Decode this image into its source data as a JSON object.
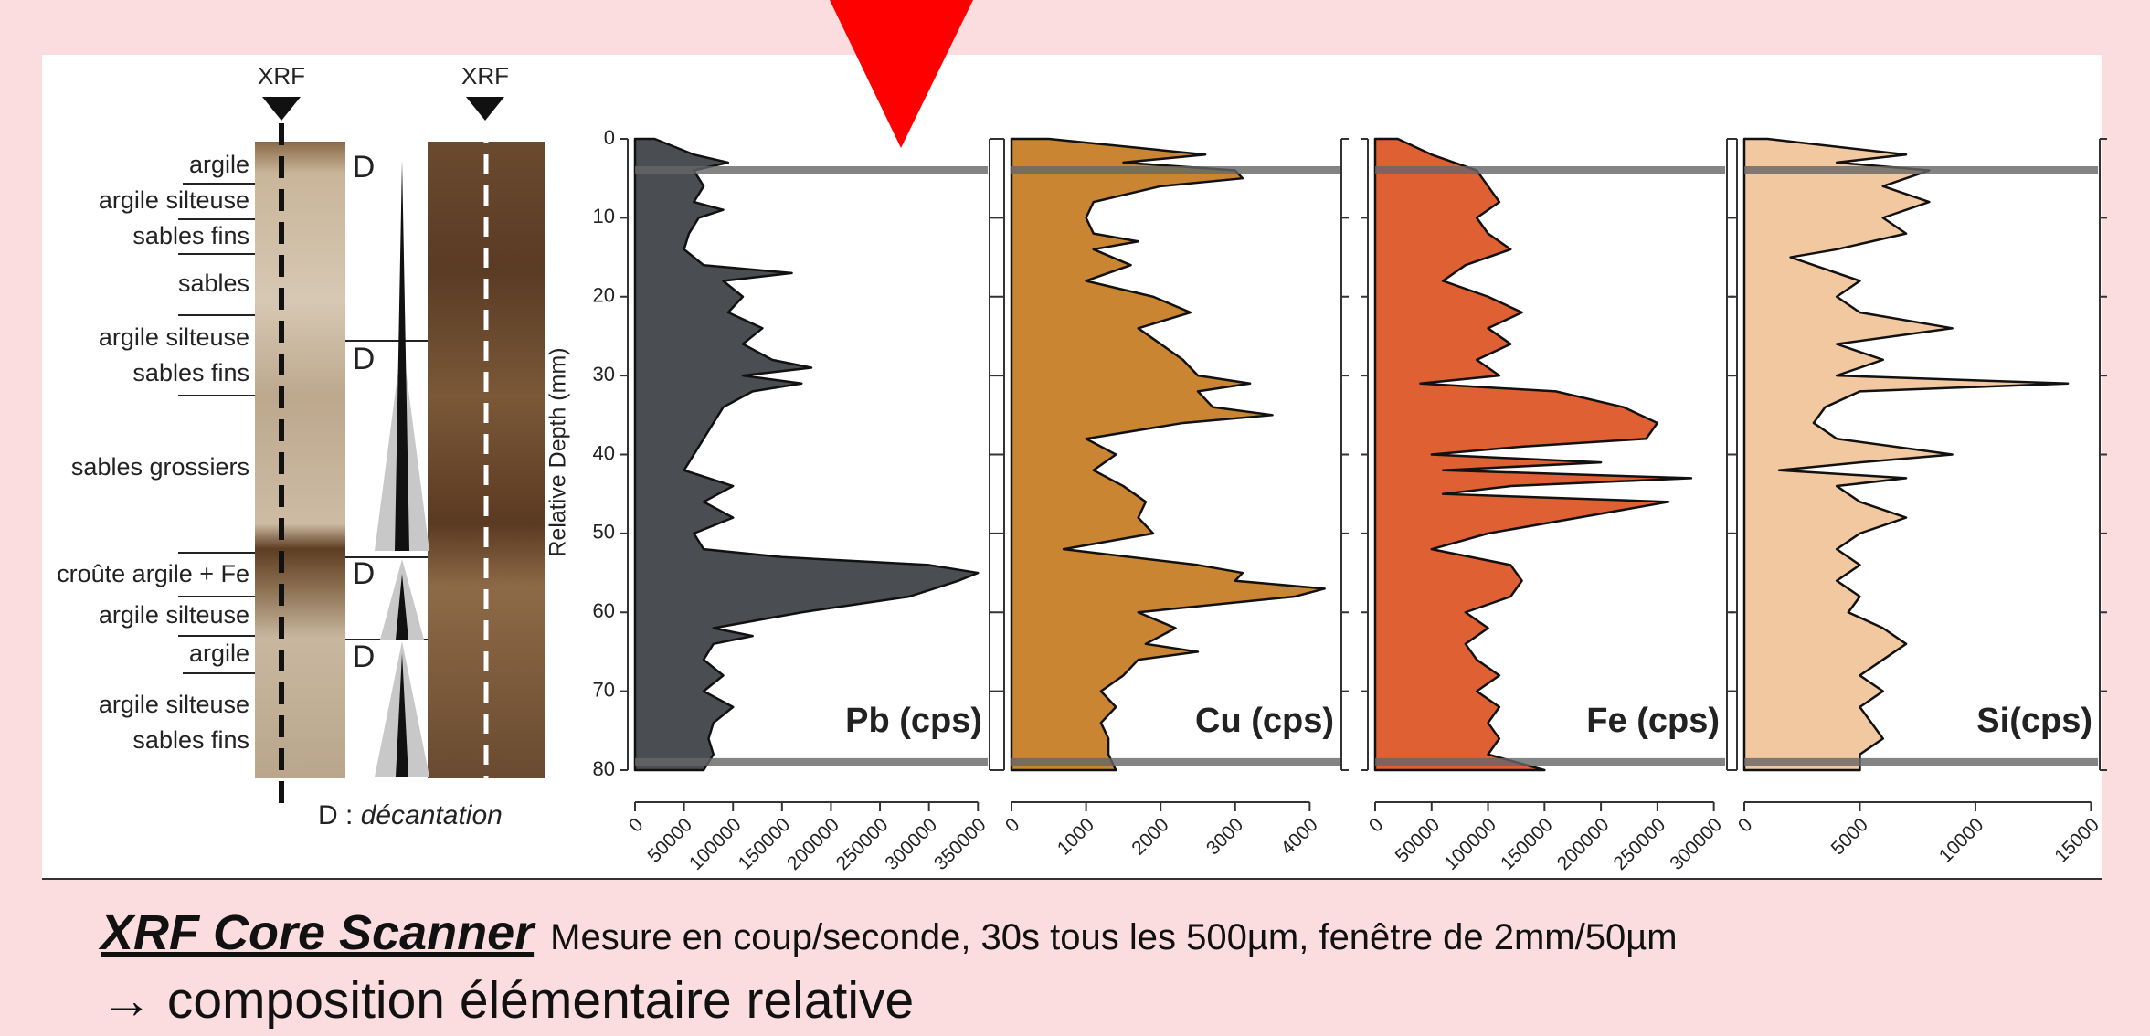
{
  "core_log": {
    "xrf_labels": [
      "XRF",
      "XRF"
    ],
    "layers": [
      "argile",
      "argile silteuse",
      "sables fins",
      "sables",
      "argile silteuse",
      "sables fins",
      "sables grossiers",
      "croûte argile + Fe",
      "argile silteuse",
      "argile",
      "argile silteuse",
      "sables fins"
    ],
    "d_marks": [
      "D",
      "D",
      "D",
      "D"
    ],
    "note": {
      "key": "D :",
      "text": "décantation"
    }
  },
  "chart_data": [
    {
      "type": "area",
      "title": "Pb (cps)",
      "color": "#4a4d52",
      "title_color": "#6b6b6b",
      "ylabel": "Relative Depth (mm)",
      "depth": [
        0,
        2,
        3,
        4,
        6,
        8,
        9,
        10,
        12,
        14,
        16,
        17,
        18,
        20,
        22,
        24,
        26,
        28,
        29,
        30,
        31,
        32,
        34,
        36,
        38,
        40,
        42,
        44,
        46,
        48,
        50,
        52,
        53,
        54,
        55,
        56,
        58,
        60,
        62,
        63,
        64,
        66,
        68,
        70,
        72,
        74,
        76,
        78,
        80
      ],
      "values": [
        20000,
        60000,
        95000,
        60000,
        70000,
        60000,
        90000,
        65000,
        55000,
        50000,
        70000,
        160000,
        90000,
        110000,
        95000,
        130000,
        110000,
        140000,
        180000,
        110000,
        170000,
        120000,
        90000,
        80000,
        70000,
        60000,
        50000,
        100000,
        70000,
        100000,
        60000,
        70000,
        150000,
        300000,
        350000,
        330000,
        280000,
        170000,
        80000,
        120000,
        80000,
        70000,
        90000,
        70000,
        100000,
        80000,
        75000,
        80000,
        70000
      ],
      "xlim": [
        0,
        360000
      ],
      "xticks": [
        0,
        50000,
        100000,
        150000,
        200000,
        250000,
        300000,
        350000
      ],
      "ylim": [
        0,
        80
      ],
      "yticks": [
        0,
        10,
        20,
        30,
        40,
        50,
        60,
        70,
        80
      ],
      "y_inverted": true,
      "hlines": [
        4,
        79
      ]
    },
    {
      "type": "area",
      "title": "Cu (cps)",
      "color": "#c98531",
      "title_color": "#c07f2a",
      "depth": [
        0,
        2,
        3,
        4,
        5,
        6,
        8,
        10,
        12,
        13,
        14,
        16,
        18,
        20,
        22,
        24,
        26,
        28,
        30,
        31,
        32,
        34,
        35,
        36,
        38,
        40,
        42,
        44,
        46,
        48,
        50,
        52,
        54,
        55,
        56,
        57,
        58,
        60,
        62,
        64,
        65,
        66,
        68,
        70,
        72,
        74,
        76,
        78,
        80
      ],
      "values": [
        500,
        2600,
        1500,
        3000,
        3100,
        2000,
        1100,
        1000,
        1100,
        1700,
        1100,
        1600,
        1000,
        1900,
        2400,
        1700,
        2000,
        2300,
        2500,
        3200,
        2500,
        2700,
        3500,
        2300,
        1000,
        1400,
        1100,
        1500,
        1800,
        1700,
        1900,
        700,
        2500,
        3100,
        3000,
        4200,
        3800,
        1700,
        2200,
        1800,
        2500,
        1700,
        1500,
        1200,
        1400,
        1200,
        1300,
        1300,
        1400
      ],
      "xlim": [
        0,
        4400
      ],
      "xticks": [
        0,
        1000,
        2000,
        3000,
        4000
      ],
      "ylim": [
        0,
        80
      ],
      "yticks": [
        0,
        10,
        20,
        30,
        40,
        50,
        60,
        70,
        80
      ],
      "y_inverted": true,
      "hlines": [
        4,
        79
      ]
    },
    {
      "type": "area",
      "title": "Fe (cps)",
      "color": "#df6033",
      "title_color": "#d96a3a",
      "depth": [
        0,
        2,
        4,
        6,
        8,
        10,
        12,
        14,
        16,
        18,
        20,
        22,
        24,
        26,
        28,
        30,
        31,
        32,
        34,
        36,
        38,
        39,
        40,
        41,
        42,
        43,
        44,
        45,
        46,
        48,
        50,
        52,
        54,
        56,
        58,
        60,
        62,
        64,
        66,
        68,
        70,
        72,
        74,
        76,
        78,
        80
      ],
      "values": [
        20000,
        50000,
        90000,
        100000,
        110000,
        90000,
        100000,
        120000,
        80000,
        60000,
        100000,
        130000,
        100000,
        120000,
        90000,
        110000,
        40000,
        160000,
        220000,
        250000,
        240000,
        130000,
        50000,
        200000,
        60000,
        280000,
        120000,
        60000,
        260000,
        180000,
        100000,
        50000,
        120000,
        130000,
        120000,
        80000,
        100000,
        80000,
        90000,
        110000,
        90000,
        110000,
        100000,
        110000,
        100000,
        150000
      ],
      "xlim": [
        0,
        310000
      ],
      "xticks": [
        0,
        50000,
        100000,
        150000,
        200000,
        250000,
        300000
      ],
      "ylim": [
        0,
        80
      ],
      "yticks": [
        0,
        10,
        20,
        30,
        40,
        50,
        60,
        70,
        80
      ],
      "y_inverted": true,
      "hlines": [
        4,
        79
      ]
    },
    {
      "type": "area",
      "title": "Si(cps)",
      "color": "#f2c8a0",
      "title_color": "#efcfae",
      "depth": [
        0,
        2,
        3,
        4,
        6,
        8,
        10,
        12,
        14,
        15,
        16,
        18,
        20,
        22,
        24,
        26,
        28,
        30,
        31,
        32,
        34,
        36,
        38,
        40,
        41,
        42,
        43,
        44,
        46,
        48,
        50,
        52,
        54,
        56,
        58,
        60,
        62,
        64,
        66,
        68,
        70,
        72,
        74,
        76,
        78,
        80
      ],
      "values": [
        1000,
        7000,
        4000,
        8000,
        6000,
        8000,
        6000,
        7000,
        4000,
        2000,
        3000,
        5000,
        4000,
        5000,
        9000,
        4000,
        6000,
        4000,
        14000,
        5000,
        3500,
        3000,
        4000,
        9000,
        5000,
        1500,
        7000,
        4000,
        5000,
        7000,
        5000,
        4000,
        5000,
        4000,
        5000,
        4500,
        6000,
        7000,
        6000,
        5000,
        6000,
        5000,
        5500,
        6000,
        5000,
        5000
      ],
      "xlim": [
        0,
        15300
      ],
      "xticks": [
        0,
        5000,
        10000,
        15000
      ],
      "ylim": [
        0,
        80
      ],
      "yticks": [
        0,
        10,
        20,
        30,
        40,
        50,
        60,
        70,
        80
      ],
      "y_inverted": true,
      "hlines": [
        4,
        79
      ]
    }
  ],
  "caption": {
    "title": "XRF Core Scanner",
    "text": "Mesure en coup/seconde, 30s tous les 500µm, fenêtre de 2mm/50µm",
    "line2": "→ composition élémentaire relative"
  }
}
